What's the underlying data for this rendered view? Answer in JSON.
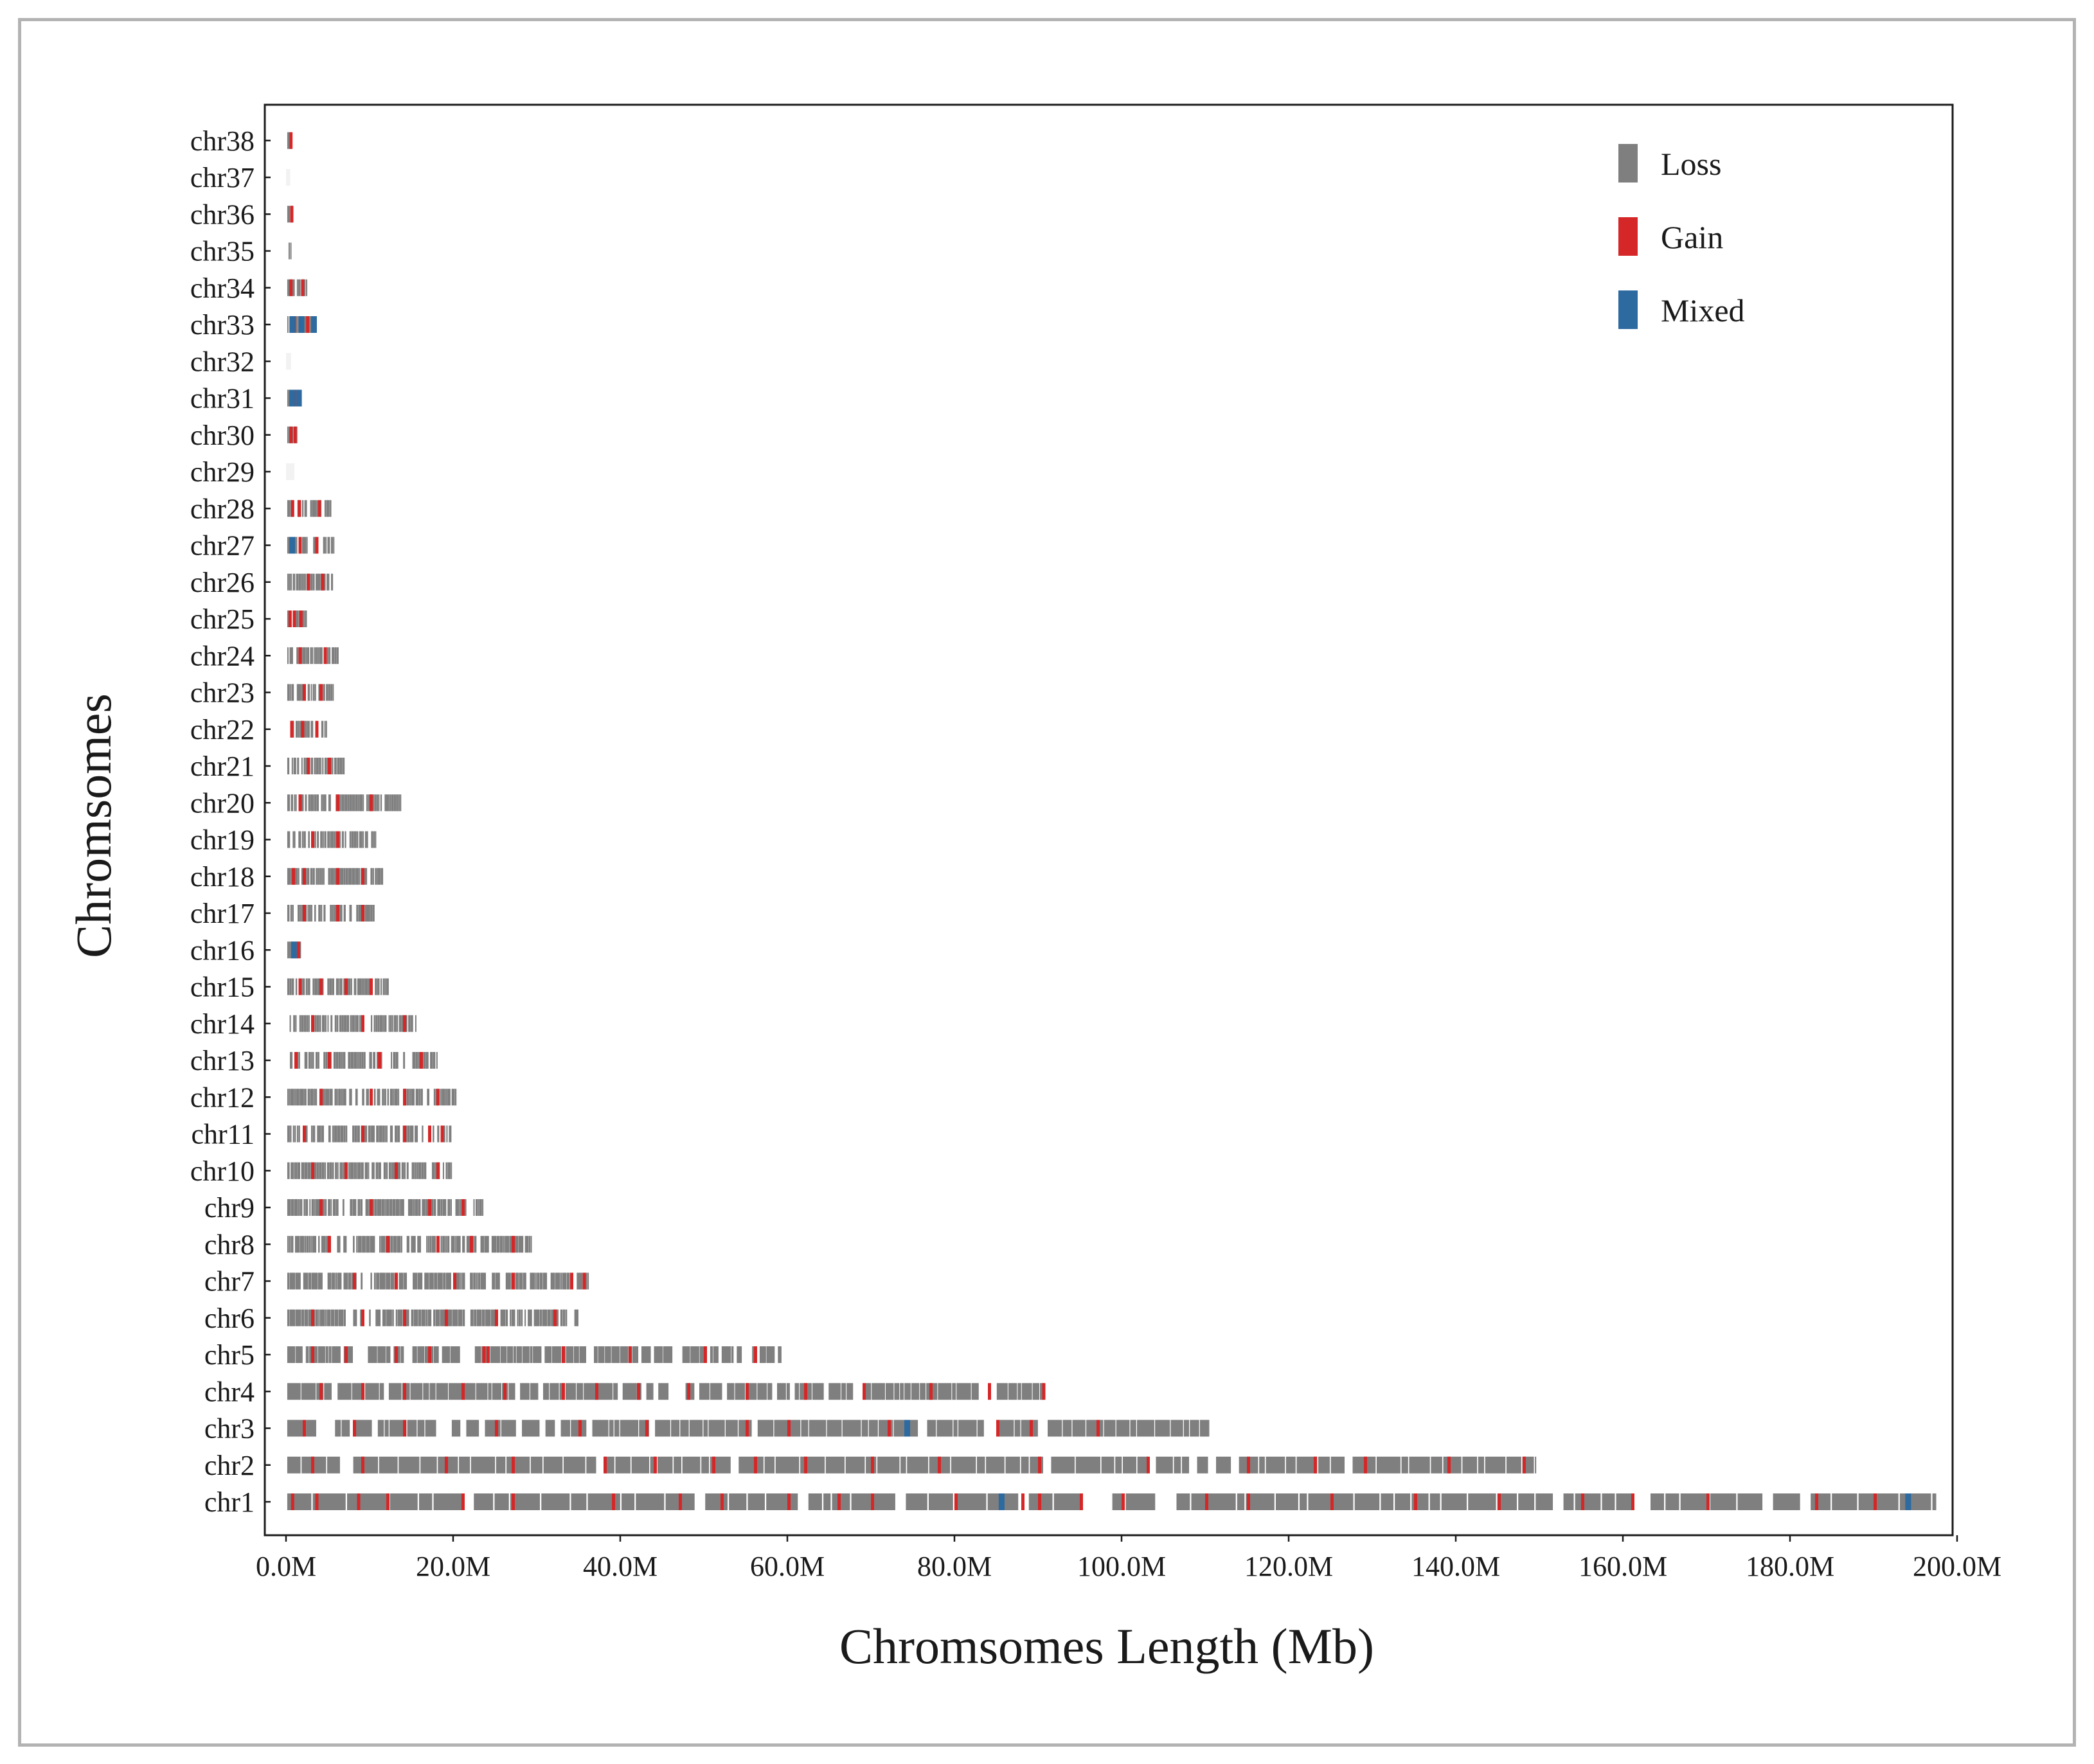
{
  "chart_data": {
    "type": "cnv-track",
    "xlabel": "Chromsomes Length  (Mb)",
    "ylabel": "Chromsomes",
    "xlim": [
      0,
      200
    ],
    "x_ticks": [
      "0.0M",
      "20.0M",
      "40.0M",
      "60.0M",
      "80.0M",
      "100.0M",
      "120.0M",
      "140.0M",
      "160.0M",
      "180.0M",
      "200.0M"
    ],
    "x_tick_values": [
      0,
      20,
      40,
      60,
      80,
      100,
      120,
      140,
      160,
      180,
      200
    ],
    "legend": [
      {
        "name": "Loss",
        "color": "#7f7f7f"
      },
      {
        "name": "Gain",
        "color": "#d62728"
      },
      {
        "name": "Mixed",
        "color": "#2c6aa0"
      }
    ],
    "legend_position": "top-right",
    "grid": false,
    "chromosomes": [
      {
        "name": "chr1",
        "length": 197.5,
        "density": 0.93,
        "gain": [
          0.6,
          3.5,
          8.5,
          12,
          21,
          27,
          39,
          47,
          52,
          60,
          66,
          70,
          80,
          88,
          90,
          95,
          100,
          110,
          115,
          125,
          135,
          145,
          155,
          161,
          170,
          183,
          190
        ],
        "mixed": [
          85.3,
          193.8
        ]
      },
      {
        "name": "chr2",
        "length": 149.5,
        "density": 0.92,
        "gain": [
          3,
          9,
          19,
          27,
          38,
          44,
          51,
          56,
          62,
          70,
          78,
          90,
          103,
          115,
          123,
          129,
          139,
          148
        ],
        "mixed": []
      },
      {
        "name": "chr3",
        "length": 110.5,
        "density": 0.9,
        "gain": [
          2,
          8,
          14,
          25,
          35,
          43,
          55,
          60,
          72,
          85,
          89,
          97
        ],
        "mixed": [
          74
        ]
      },
      {
        "name": "chr4",
        "length": 90.9,
        "density": 0.88,
        "gain": [
          4,
          9,
          14,
          21,
          26,
          33,
          37,
          42,
          48,
          55,
          62,
          69,
          77,
          84,
          90.5
        ],
        "mixed": []
      },
      {
        "name": "chr5",
        "length": 59.3,
        "density": 0.9,
        "gain": [
          3,
          7,
          13,
          17,
          23.5,
          24,
          33,
          41,
          50,
          56
        ],
        "mixed": []
      },
      {
        "name": "chr6",
        "length": 35.0,
        "density": 0.9,
        "gain": [
          3,
          9,
          14,
          19,
          25,
          32
        ],
        "mixed": []
      },
      {
        "name": "chr7",
        "length": 36.2,
        "density": 0.88,
        "gain": [
          8,
          13,
          20,
          27,
          34,
          35.5
        ],
        "mixed": []
      },
      {
        "name": "chr8",
        "length": 29.4,
        "density": 0.85,
        "gain": [
          5,
          12,
          18,
          22,
          27
        ],
        "mixed": []
      },
      {
        "name": "chr9",
        "length": 23.5,
        "density": 0.9,
        "gain": [
          4,
          10,
          17,
          21
        ],
        "mixed": []
      },
      {
        "name": "chr10",
        "length": 20.0,
        "density": 0.9,
        "gain": [
          3,
          7,
          13,
          18
        ],
        "mixed": []
      },
      {
        "name": "chr11",
        "length": 19.8,
        "density": 0.82,
        "gain": [
          2,
          9,
          14,
          17,
          18.5
        ],
        "mixed": []
      },
      {
        "name": "chr12",
        "length": 20.4,
        "density": 0.85,
        "gain": [
          4,
          10,
          14,
          18
        ],
        "mixed": []
      },
      {
        "name": "chr13",
        "length": 18.0,
        "density": 0.85,
        "gain": [
          1,
          5,
          11,
          16
        ],
        "mixed": []
      },
      {
        "name": "chr14",
        "length": 15.5,
        "density": 0.8,
        "gain": [
          3,
          9,
          14
        ],
        "mixed": []
      },
      {
        "name": "chr15",
        "length": 12.5,
        "density": 0.78,
        "gain": [
          1.5,
          4,
          7,
          10
        ],
        "mixed": []
      },
      {
        "name": "chr16",
        "length": 1.8,
        "density": 0.95,
        "gain": [
          1.3
        ],
        "mixed": [
          0.6
        ]
      },
      {
        "name": "chr17",
        "length": 10.6,
        "density": 0.78,
        "gain": [
          2,
          6,
          9
        ],
        "mixed": []
      },
      {
        "name": "chr18",
        "length": 11.8,
        "density": 0.8,
        "gain": [
          0.7,
          2,
          6,
          9
        ],
        "mixed": []
      },
      {
        "name": "chr19",
        "length": 10.8,
        "density": 0.75,
        "gain": [
          3,
          6
        ],
        "mixed": []
      },
      {
        "name": "chr20",
        "length": 13.8,
        "density": 0.85,
        "gain": [
          1.5,
          6,
          10
        ],
        "mixed": []
      },
      {
        "name": "chr21",
        "length": 7.0,
        "density": 0.78,
        "gain": [
          2.5,
          5
        ],
        "mixed": []
      },
      {
        "name": "chr22",
        "length": 4.8,
        "density": 0.7,
        "gain": [
          0.5,
          1.8,
          3.5
        ],
        "mixed": []
      },
      {
        "name": "chr23",
        "length": 5.7,
        "density": 0.8,
        "gain": [
          2,
          4
        ],
        "mixed": []
      },
      {
        "name": "chr24",
        "length": 6.3,
        "density": 0.78,
        "gain": [
          1.5,
          4.5
        ],
        "mixed": []
      },
      {
        "name": "chr25",
        "length": 2.5,
        "density": 0.9,
        "gain": [
          0.3,
          0.8,
          1.6
        ],
        "mixed": []
      },
      {
        "name": "chr26",
        "length": 5.6,
        "density": 0.8,
        "gain": [
          2.5,
          4.2
        ],
        "mixed": []
      },
      {
        "name": "chr27",
        "length": 6.0,
        "density": 0.7,
        "gain": [
          1.5,
          3.5
        ],
        "mixed": [
          0.4
        ]
      },
      {
        "name": "chr28",
        "length": 5.5,
        "density": 0.75,
        "gain": [
          0.6,
          1.4,
          3.8
        ],
        "mixed": []
      },
      {
        "name": "chr29",
        "length": 1.0,
        "density": 0.0,
        "gain": [],
        "mixed": []
      },
      {
        "name": "chr30",
        "length": 1.3,
        "density": 0.95,
        "gain": [
          0.4,
          0.9
        ],
        "mixed": []
      },
      {
        "name": "chr31",
        "length": 1.6,
        "density": 0.9,
        "gain": [
          0.8
        ],
        "mixed": [
          0.4,
          1.2
        ]
      },
      {
        "name": "chr32",
        "length": 0.6,
        "density": 0.0,
        "gain": [],
        "mixed": []
      },
      {
        "name": "chr33",
        "length": 3.5,
        "density": 0.85,
        "gain": [
          0.8,
          2.4
        ],
        "mixed": [
          0.4,
          1.5,
          3.0
        ]
      },
      {
        "name": "chr34",
        "length": 2.5,
        "density": 0.8,
        "gain": [
          0.4,
          1.8
        ],
        "mixed": []
      },
      {
        "name": "chr35",
        "length": 0.6,
        "density": 0.9,
        "gain": [],
        "mixed": []
      },
      {
        "name": "chr36",
        "length": 0.8,
        "density": 0.9,
        "gain": [
          0.5
        ],
        "mixed": []
      },
      {
        "name": "chr37",
        "length": 0.5,
        "density": 0.0,
        "gain": [],
        "mixed": []
      },
      {
        "name": "chr38",
        "length": 0.6,
        "density": 0.9,
        "gain": [
          0.4
        ],
        "mixed": []
      }
    ]
  }
}
